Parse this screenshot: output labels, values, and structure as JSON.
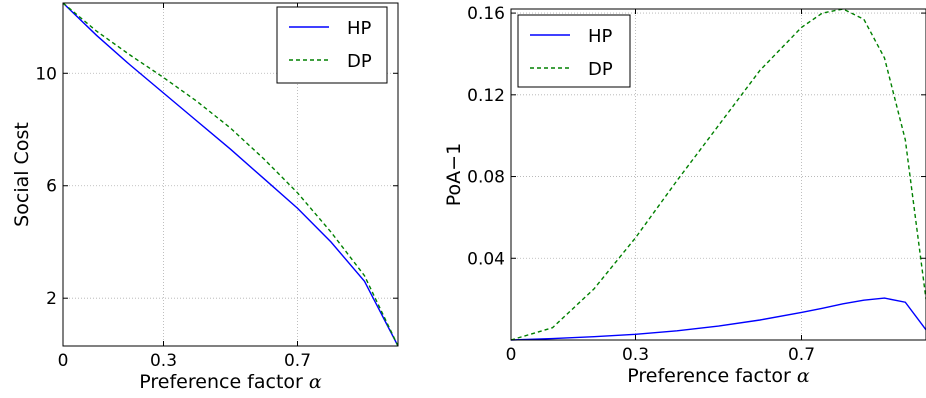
{
  "chart_data": [
    {
      "type": "line",
      "xlabel": "Preference factor",
      "xlabel_symbol": "α",
      "ylabel": "Social Cost",
      "xlim": [
        0,
        1
      ],
      "ylim": [
        0.3,
        12.5
      ],
      "xticks": [
        0,
        0.3,
        0.7
      ],
      "xtick_labels": [
        "0",
        "0.3",
        "0.7"
      ],
      "yticks": [
        2,
        6,
        10
      ],
      "ytick_labels": [
        "2",
        "6",
        "10"
      ],
      "grid": true,
      "legend_position": "top-right",
      "x": [
        0,
        0.1,
        0.2,
        0.3,
        0.4,
        0.5,
        0.6,
        0.7,
        0.8,
        0.9,
        1.0
      ],
      "series": [
        {
          "name": "HP",
          "color": "#0000ff",
          "style": "solid",
          "values": [
            12.5,
            11.35,
            10.3,
            9.3,
            8.3,
            7.3,
            6.25,
            5.2,
            4.0,
            2.6,
            0.3
          ]
        },
        {
          "name": "DP",
          "color": "#008000",
          "style": "dashed",
          "values": [
            12.5,
            11.5,
            10.65,
            9.85,
            9.0,
            8.05,
            6.95,
            5.75,
            4.35,
            2.8,
            0.3
          ]
        }
      ]
    },
    {
      "type": "line",
      "xlabel": "Preference factor",
      "xlabel_symbol": "α",
      "ylabel": "PoA−1",
      "xlim": [
        0,
        1
      ],
      "ylim": [
        0,
        0.162
      ],
      "xticks": [
        0,
        0.3,
        0.7
      ],
      "xtick_labels": [
        "0",
        "0.3",
        "0.7"
      ],
      "yticks": [
        0.04,
        0.08,
        0.12,
        0.16
      ],
      "ytick_labels": [
        "0.04",
        "0.08",
        "0.12",
        "0.16"
      ],
      "grid": true,
      "legend_position": "top-left",
      "x": [
        0,
        0.1,
        0.2,
        0.3,
        0.4,
        0.5,
        0.6,
        0.7,
        0.75,
        0.8,
        0.85,
        0.9,
        0.95,
        1.0
      ],
      "series": [
        {
          "name": "HP",
          "color": "#0000ff",
          "style": "solid",
          "values": [
            0,
            0.0007,
            0.0016,
            0.0028,
            0.0045,
            0.0068,
            0.0098,
            0.0135,
            0.0155,
            0.0177,
            0.0195,
            0.0205,
            0.0185,
            0.005
          ]
        },
        {
          "name": "DP",
          "color": "#008000",
          "style": "dashed",
          "values": [
            0,
            0.006,
            0.025,
            0.05,
            0.078,
            0.105,
            0.132,
            0.153,
            0.16,
            0.162,
            0.157,
            0.138,
            0.098,
            0.02
          ]
        }
      ]
    }
  ]
}
